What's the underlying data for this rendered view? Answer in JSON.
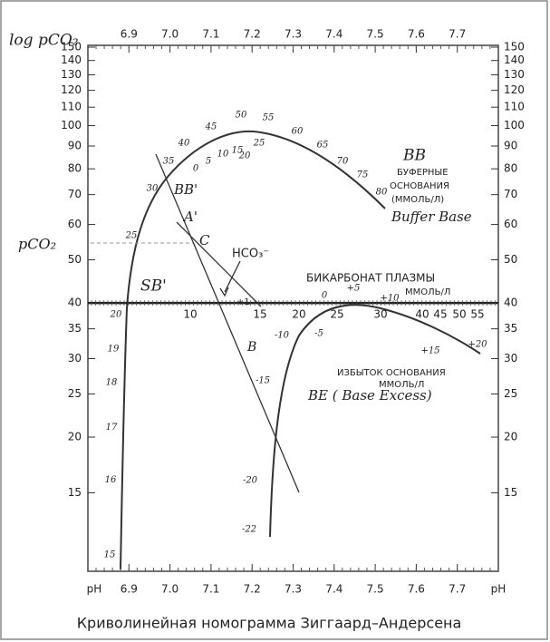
{
  "chart_data": {
    "type": "nomogram",
    "title": "Криволинейная номограмма Зиггаард–Андерсена",
    "x_label": "pH",
    "y_label": "log pCO₂",
    "y_label_left": "pCO₂",
    "xlim": [
      6.8,
      7.8
    ],
    "ylim": [
      10,
      150
    ],
    "log_y": true,
    "xticks": [
      6.9,
      {
        "value": 7,
        "label": "7.0"
      },
      7.1,
      7.2,
      7.3,
      7.4,
      7.5,
      7.6,
      7.7
    ],
    "yticks": [
      15,
      20,
      25,
      30,
      35,
      40,
      50,
      60,
      70,
      80,
      90,
      100,
      110,
      120,
      130,
      140,
      150
    ],
    "scales": {
      "buffer_base": [
        30,
        35,
        40,
        45,
        50,
        55,
        60,
        65,
        70,
        75,
        80
      ],
      "buffer_base_inner": [
        0,
        5,
        10,
        15,
        20,
        25
      ],
      "standard_bicarbonate": [
        25,
        20,
        19,
        18,
        17,
        16,
        15
      ],
      "plasma_bicarbonate": [
        10,
        15,
        20,
        25,
        30,
        40,
        45,
        50,
        55
      ],
      "base_excess": [
        -22,
        -20,
        -15,
        -10,
        -5,
        0,
        {
          "value": 5,
          "label": "+5"
        },
        {
          "value": 10,
          "label": "+10"
        },
        {
          "value": 15,
          "label": "+15"
        },
        {
          "value": 20,
          "label": "+20"
        }
      ]
    },
    "annotations": {
      "bb_prime": "BB'",
      "a_prime": "A'",
      "c": "C",
      "hco3": "HCO₃⁻",
      "sb_prime": "SB'",
      "b": "B",
      "plus_one": "+1",
      "bb": "BB",
      "bb_ru_1": "БУФЕРНЫЕ",
      "bb_ru_2": "ОСНОВАНИЯ",
      "bb_ru_3": "(ММОЛЬ/Л)",
      "bb_en": "Buffer Base",
      "bicarb_1": "БИКАРБОНАТ  ПЛАЗМЫ",
      "bicarb_2": "ММОЛЬ/Л",
      "be_1": "ИЗБЫТОК ОСНОВАНИЯ",
      "be_2": "ММОЛЬ/Л",
      "be_en": "BE ( Base Excess)"
    }
  }
}
